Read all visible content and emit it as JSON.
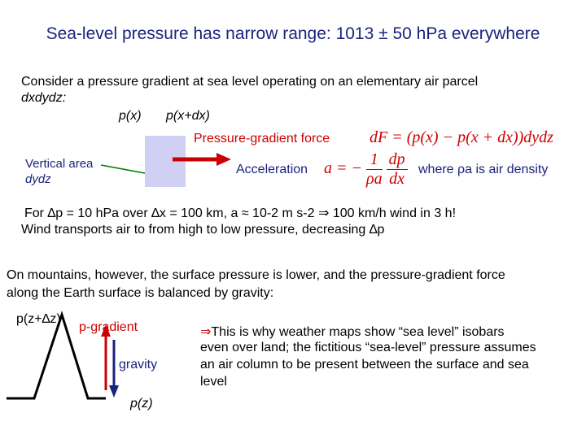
{
  "title": "Sea-level pressure has narrow range: 1013 ± 50 hPa everywhere",
  "intro": {
    "line1": "Consider a pressure gradient at sea level operating on an elementary air parcel",
    "line2": "dxdydz:"
  },
  "labels": {
    "px": "p(x)",
    "pxdx": "p(x+dx)",
    "pressure_gradient_force": "Pressure-gradient force",
    "vertical_area": "Vertical area",
    "dydz": "dydz",
    "acceleration": "Acceleration",
    "air_density_note": "where ρa is air density"
  },
  "equations": {
    "force": "dF = (p(x) − p(x + dx))dydz",
    "accel_lhs": "a = −",
    "accel_num": "1",
    "accel_den": "ρa",
    "accel_dnum": "dp",
    "accel_dden": "dx"
  },
  "example": {
    "line1": "For ∆p = 10 hPa over ∆x = 100 km, a ≈ 10-2 m s-2 ⇒ 100 km/h wind in 3 h!",
    "line2": "Wind transports air to from high to low pressure, decreasing ∆p"
  },
  "mountains": {
    "line1": "On mountains, however, the surface pressure is lower, and the pressure-gradient force",
    "line2": "along the Earth surface is balanced by gravity:"
  },
  "diagram": {
    "pz_dz": "p(z+∆z)",
    "p_gradient": "p-gradient",
    "gravity": "gravity",
    "pz": "p(z)"
  },
  "note": {
    "bullet": "⇒",
    "line1": "This is why weather maps show “sea level” isobars",
    "line2": "even over land; the fictitious “sea-level” pressure assumes",
    "line3": "an air column to be present between the surface and sea",
    "line4": "level"
  },
  "colors": {
    "title": "#1a237e",
    "accent_red": "#cc0000",
    "box": "#cfd0f4",
    "line": "#008000"
  }
}
